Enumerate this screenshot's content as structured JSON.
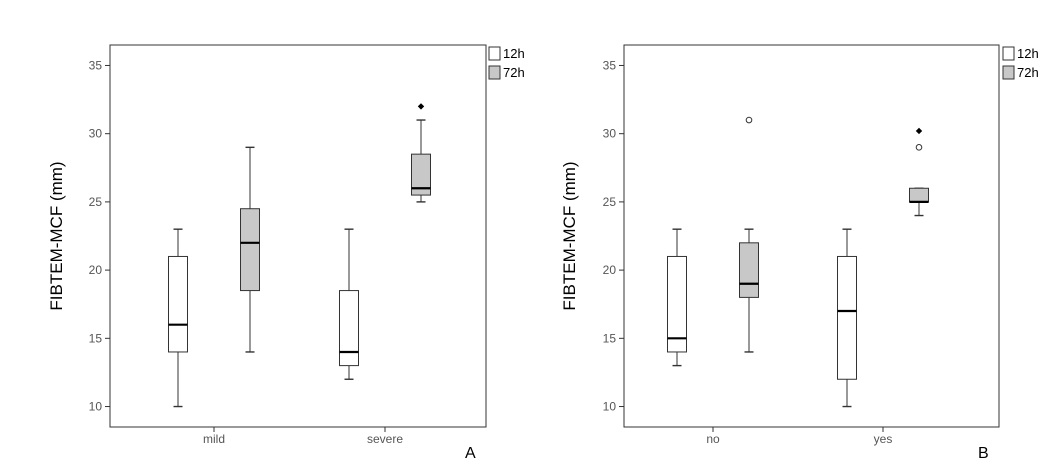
{
  "chart_data": [
    {
      "type": "box",
      "panel_label": "A",
      "ylabel": "FIBTEM-MCF (mm)",
      "xlabel": "",
      "ylim": [
        8.5,
        36.5
      ],
      "yticks": [
        "10",
        "15",
        "20",
        "25",
        "30",
        "35"
      ],
      "categories": [
        "mild",
        "severe"
      ],
      "legend": {
        "placement": "outside-top-right",
        "entries": [
          "12h",
          "72h"
        ]
      },
      "colors": {
        "12h": "#ffffff",
        "72h": "#c8c8c8",
        "stroke": "#333333"
      },
      "grid": false,
      "series": [
        {
          "name": "12h",
          "boxes": [
            {
              "category": "mild",
              "min": 10,
              "q1": 14,
              "median": 16,
              "q3": 21,
              "max": 23
            },
            {
              "category": "severe",
              "min": 12,
              "q1": 13,
              "median": 14,
              "q3": 18.5,
              "max": 23
            }
          ]
        },
        {
          "name": "72h",
          "boxes": [
            {
              "category": "mild",
              "min": 14,
              "q1": 18.5,
              "median": 22,
              "q3": 24.5,
              "max": 29
            },
            {
              "category": "severe",
              "min": 25,
              "q1": 25.5,
              "median": 26,
              "q3": 28.5,
              "max": 31,
              "extremes": [
                32
              ]
            }
          ]
        }
      ]
    },
    {
      "type": "box",
      "panel_label": "B",
      "ylabel": "FIBTEM-MCF (mm)",
      "xlabel": "",
      "ylim": [
        8.5,
        36.5
      ],
      "yticks": [
        "10",
        "15",
        "20",
        "25",
        "30",
        "35"
      ],
      "categories": [
        "no",
        "yes"
      ],
      "legend": {
        "placement": "outside-top-right",
        "entries": [
          "12h",
          "72h"
        ]
      },
      "colors": {
        "12h": "#ffffff",
        "72h": "#c8c8c8",
        "stroke": "#333333"
      },
      "grid": false,
      "series": [
        {
          "name": "12h",
          "boxes": [
            {
              "category": "no",
              "min": 13,
              "q1": 14,
              "median": 15,
              "q3": 21,
              "max": 23
            },
            {
              "category": "yes",
              "min": 10,
              "q1": 12,
              "median": 17,
              "q3": 21,
              "max": 23
            }
          ]
        },
        {
          "name": "72h",
          "boxes": [
            {
              "category": "no",
              "min": 14,
              "q1": 18,
              "median": 19,
              "q3": 22,
              "max": 23,
              "outliers": [
                31
              ]
            },
            {
              "category": "yes",
              "min": 24,
              "q1": 25,
              "median": 25,
              "q3": 26,
              "max": 26,
              "outliers": [
                29
              ],
              "extremes": [
                30.2
              ]
            }
          ]
        }
      ]
    }
  ]
}
